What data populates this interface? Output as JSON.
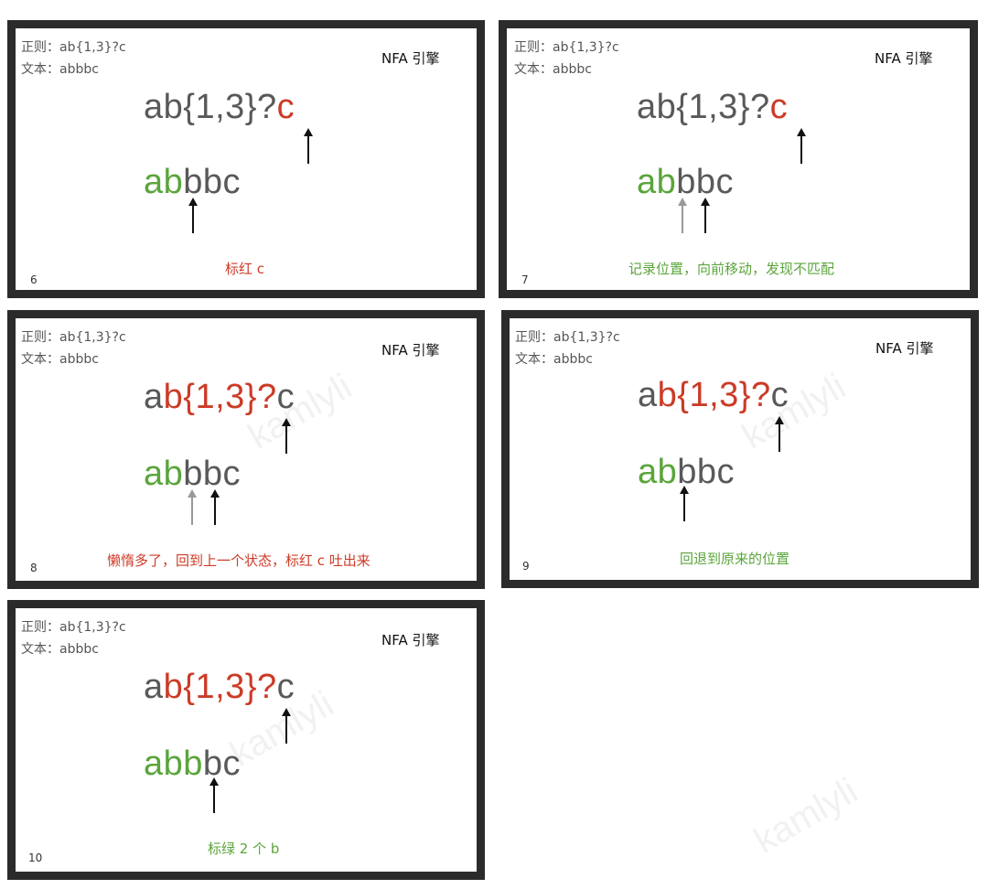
{
  "regex_label": "正则：",
  "text_label": "文本：",
  "regex": "ab{1,3}?c",
  "text": "abbbc",
  "engine": "NFA 引擎",
  "watermark": "kamlyli",
  "colors": {
    "grey": "#595959",
    "red": "#cc3b27",
    "green": "#5aa53b",
    "arrow_dark": "#111111",
    "arrow_light": "#999999"
  },
  "slides": [
    {
      "number": "6",
      "caption": "标红 c",
      "caption_color": "red",
      "regex_parts": [
        {
          "t": "ab{1,3}?",
          "c": "grey"
        },
        {
          "t": "c",
          "c": "red"
        }
      ],
      "text_parts": [
        {
          "t": "ab",
          "c": "green"
        },
        {
          "t": "bbc",
          "c": "grey"
        }
      ]
    },
    {
      "number": "7",
      "caption": "记录位置，向前移动，发现不匹配",
      "caption_color": "green",
      "regex_parts": [
        {
          "t": "ab{1,3}?",
          "c": "grey"
        },
        {
          "t": "c",
          "c": "red"
        }
      ],
      "text_parts": [
        {
          "t": "ab",
          "c": "green"
        },
        {
          "t": "bbc",
          "c": "grey"
        }
      ]
    },
    {
      "number": "8",
      "caption": "懒惰多了，回到上一个状态，标红 c 吐出来",
      "caption_color": "red",
      "regex_parts": [
        {
          "t": "a",
          "c": "grey"
        },
        {
          "t": "b{1,3}?",
          "c": "red"
        },
        {
          "t": "c",
          "c": "grey"
        }
      ],
      "text_parts": [
        {
          "t": "ab",
          "c": "green"
        },
        {
          "t": "bbc",
          "c": "grey"
        }
      ]
    },
    {
      "number": "9",
      "caption": "回退到原来的位置",
      "caption_color": "green",
      "regex_parts": [
        {
          "t": "a",
          "c": "grey"
        },
        {
          "t": "b{1,3}?",
          "c": "red"
        },
        {
          "t": "c",
          "c": "grey"
        }
      ],
      "text_parts": [
        {
          "t": "ab",
          "c": "green"
        },
        {
          "t": "bbc",
          "c": "grey"
        }
      ]
    },
    {
      "number": "10",
      "caption": "标绿 2 个 b",
      "caption_color": "green",
      "regex_parts": [
        {
          "t": "a",
          "c": "grey"
        },
        {
          "t": "b{1,3}?",
          "c": "red"
        },
        {
          "t": "c",
          "c": "grey"
        }
      ],
      "text_parts": [
        {
          "t": "abb",
          "c": "green"
        },
        {
          "t": "bc",
          "c": "grey"
        }
      ]
    }
  ]
}
